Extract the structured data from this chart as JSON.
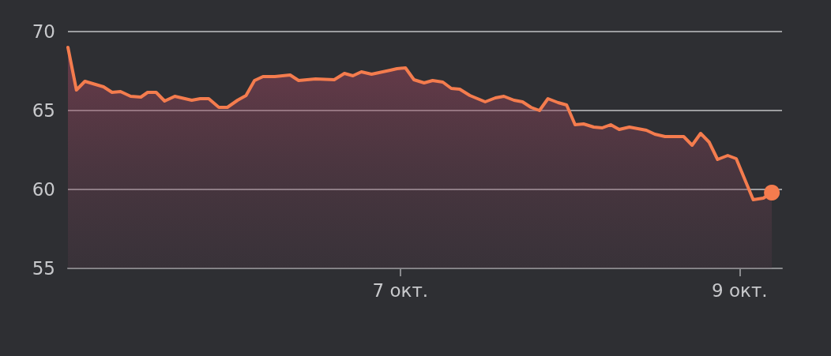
{
  "chart_data": {
    "type": "area",
    "x": [
      5.04,
      5.09,
      5.14,
      5.25,
      5.3,
      5.35,
      5.41,
      5.47,
      5.51,
      5.56,
      5.61,
      5.67,
      5.77,
      5.82,
      5.87,
      5.93,
      5.98,
      6.04,
      6.09,
      6.14,
      6.19,
      6.26,
      6.35,
      6.4,
      6.5,
      6.61,
      6.67,
      6.72,
      6.77,
      6.83,
      6.94,
      6.98,
      7.03,
      7.08,
      7.14,
      7.19,
      7.25,
      7.3,
      7.35,
      7.41,
      7.5,
      7.56,
      7.61,
      7.67,
      7.72,
      7.77,
      7.82,
      7.87,
      7.93,
      7.98,
      8.03,
      8.08,
      8.14,
      8.19,
      8.24,
      8.29,
      8.35,
      8.45,
      8.5,
      8.56,
      8.67,
      8.72,
      8.77,
      8.82,
      8.87,
      8.93,
      8.98,
      9.08,
      9.14,
      9.19
    ],
    "series": [
      {
        "color": "#f47c4e",
        "values": [
          69.0,
          66.3,
          66.85,
          66.5,
          66.15,
          66.2,
          65.9,
          65.85,
          66.15,
          66.15,
          65.6,
          65.9,
          65.65,
          65.75,
          65.75,
          65.2,
          65.2,
          65.65,
          65.95,
          66.9,
          67.15,
          67.15,
          67.25,
          66.9,
          67.0,
          66.95,
          67.35,
          67.2,
          67.45,
          67.3,
          67.55,
          67.65,
          67.7,
          66.95,
          66.75,
          66.9,
          66.8,
          66.4,
          66.35,
          65.95,
          65.55,
          65.8,
          65.9,
          65.65,
          65.55,
          65.2,
          65.0,
          65.75,
          65.5,
          65.35,
          64.1,
          64.15,
          63.95,
          63.9,
          64.1,
          63.8,
          63.95,
          63.75,
          63.5,
          63.35,
          63.35,
          62.8,
          63.55,
          63.0,
          61.9,
          62.15,
          61.95,
          59.35,
          59.45,
          59.8
        ]
      }
    ],
    "xlim": [
      5.04,
      9.25
    ],
    "xticks": [
      {
        "value": 7,
        "label": "7 окт."
      },
      {
        "value": 9,
        "label": "9 окт."
      }
    ],
    "ylim": [
      55,
      70
    ],
    "yticks": [
      55,
      60,
      65,
      70
    ],
    "grid": "y"
  }
}
